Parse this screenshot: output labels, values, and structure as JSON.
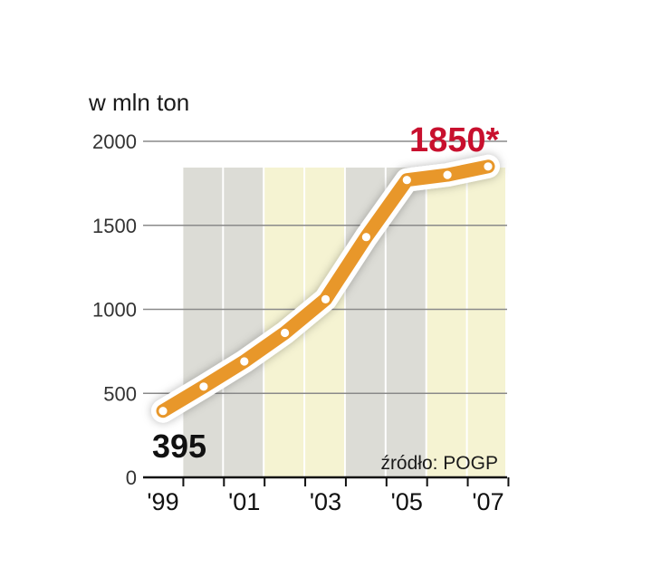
{
  "chart_data": {
    "type": "line",
    "ylabel": "w mln ton",
    "source": "źródło: POGP",
    "ylim": [
      0,
      2000
    ],
    "yticks": [
      0,
      500,
      1000,
      1500,
      2000
    ],
    "xticks": [
      "'99",
      "'01",
      "'03",
      "'05",
      "'07"
    ],
    "x": [
      1999,
      2000,
      2001,
      2002,
      2003,
      2004,
      2005,
      2006,
      2007
    ],
    "values": [
      395,
      540,
      690,
      860,
      1060,
      1430,
      1770,
      1800,
      1850
    ],
    "start_label": "395",
    "end_label": "1850*",
    "grid": "horizontal",
    "colors": {
      "line": "#e8972a",
      "band_gray": "#dcdcd6",
      "band_yellow": "#f5f3d2",
      "end_label": "#c8102e"
    }
  }
}
